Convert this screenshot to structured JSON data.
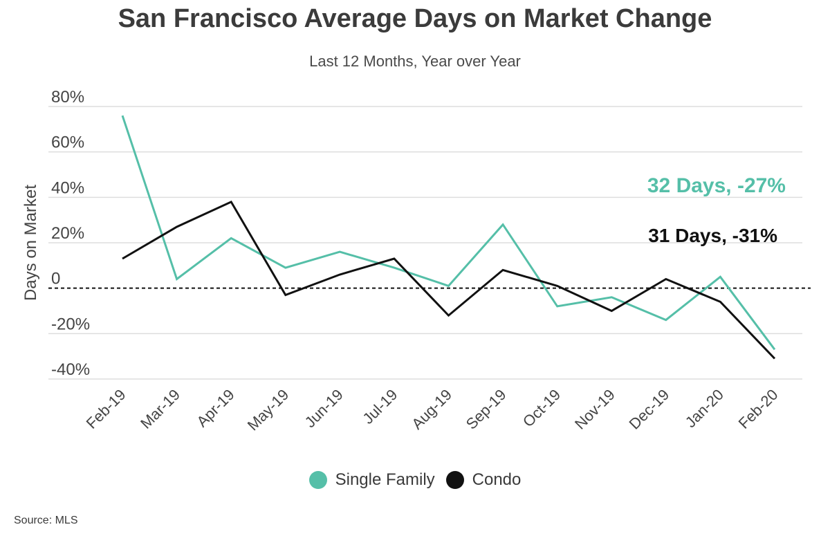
{
  "title": "San Francisco Average Days on Market Change",
  "subtitle": "Last 12 Months, Year over Year",
  "source": "Source:  MLS",
  "colors": {
    "single_family": "#55bfa8",
    "condo": "#111111",
    "grid": "#dddddd",
    "axis_text": "#444444"
  },
  "chart_data": {
    "type": "line",
    "ylabel": "Days on Market",
    "ylim": [
      -40,
      80
    ],
    "yticks": [
      -40,
      -20,
      0,
      20,
      40,
      60,
      80
    ],
    "ytick_labels": [
      "-40%",
      "-20%",
      "0",
      "20%",
      "40%",
      "60%",
      "80%"
    ],
    "categories": [
      "Feb-19",
      "Mar-19",
      "Apr-19",
      "May-19",
      "Jun-19",
      "Jul-19",
      "Aug-19",
      "Sep-19",
      "Oct-19",
      "Nov-19",
      "Dec-19",
      "Jan-20",
      "Feb-20"
    ],
    "series": [
      {
        "name": "Single Family",
        "color": "#55bfa8",
        "values": [
          76,
          4,
          22,
          9,
          16,
          9,
          1,
          28,
          -8,
          -4,
          -14,
          5,
          -27
        ]
      },
      {
        "name": "Condo",
        "color": "#111111",
        "values": [
          13,
          27,
          38,
          -3,
          6,
          13,
          -12,
          8,
          1,
          -10,
          4,
          -6,
          -31
        ]
      }
    ],
    "reference_line": {
      "y": 0,
      "style": "dashed"
    },
    "annotations": [
      {
        "text": "32 Days, -27%",
        "series": "Single Family"
      },
      {
        "text": "31 Days, -31%",
        "series": "Condo"
      }
    ],
    "legend_position": "bottom-center",
    "grid": true
  }
}
